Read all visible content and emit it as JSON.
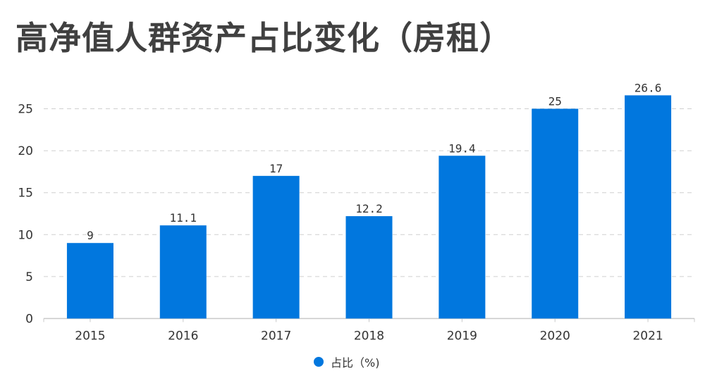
{
  "chart_data": {
    "type": "bar",
    "title": "高净值人群资产占比变化（房租）",
    "categories": [
      "2015",
      "2016",
      "2017",
      "2018",
      "2019",
      "2020",
      "2021"
    ],
    "series": [
      {
        "name": "占比（%)",
        "values": [
          9,
          11.1,
          17,
          12.2,
          19.4,
          25,
          26.6
        ],
        "data_labels": [
          "9",
          "11.1",
          "17",
          "12.2",
          "19.4",
          "25",
          "26.6"
        ]
      }
    ],
    "ylim": [
      0,
      27.5
    ],
    "yticks": [
      0,
      5,
      10,
      15,
      20,
      25
    ],
    "grid": true,
    "legend_position": "bottom-center",
    "bar_color": "#0177DE"
  }
}
